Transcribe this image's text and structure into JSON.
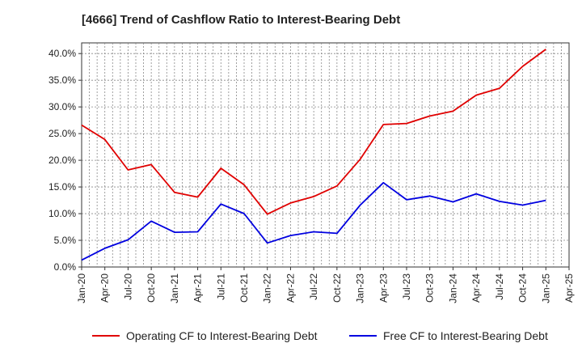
{
  "title": "[4666]  Trend of Cashflow Ratio to Interest-Bearing Debt",
  "chart_data": {
    "type": "line",
    "x_ticks": [
      "Jan-20",
      "Apr-20",
      "Jul-20",
      "Oct-20",
      "Jan-21",
      "Apr-21",
      "Jul-21",
      "Oct-21",
      "Jan-22",
      "Apr-22",
      "Jul-22",
      "Oct-22",
      "Jan-23",
      "Apr-23",
      "Jul-23",
      "Oct-23",
      "Jan-24",
      "Apr-24",
      "Jul-24",
      "Oct-24",
      "Jan-25",
      "Apr-25"
    ],
    "y_ticks": [
      "0.0%",
      "5.0%",
      "10.0%",
      "15.0%",
      "20.0%",
      "25.0%",
      "30.0%",
      "35.0%",
      "40.0%"
    ],
    "ylim": [
      0,
      42
    ],
    "grid": true,
    "legend_position": "bottom",
    "series": [
      {
        "name": "Operating CF to Interest-Bearing Debt",
        "color": "#e00000",
        "values": [
          26.6,
          23.9,
          18.2,
          19.2,
          14.0,
          13.1,
          18.5,
          15.4,
          9.9,
          12.0,
          13.2,
          15.2,
          20.2,
          26.7,
          26.9,
          28.3,
          29.2,
          32.2,
          33.5,
          37.6,
          40.8
        ]
      },
      {
        "name": "Free CF to Interest-Bearing Debt",
        "color": "#0000e0",
        "values": [
          1.3,
          3.5,
          5.1,
          8.6,
          6.5,
          6.6,
          11.8,
          10.0,
          4.5,
          5.9,
          6.6,
          6.3,
          11.6,
          15.8,
          12.6,
          13.3,
          12.2,
          13.7,
          12.3,
          11.6,
          12.5
        ]
      }
    ]
  }
}
